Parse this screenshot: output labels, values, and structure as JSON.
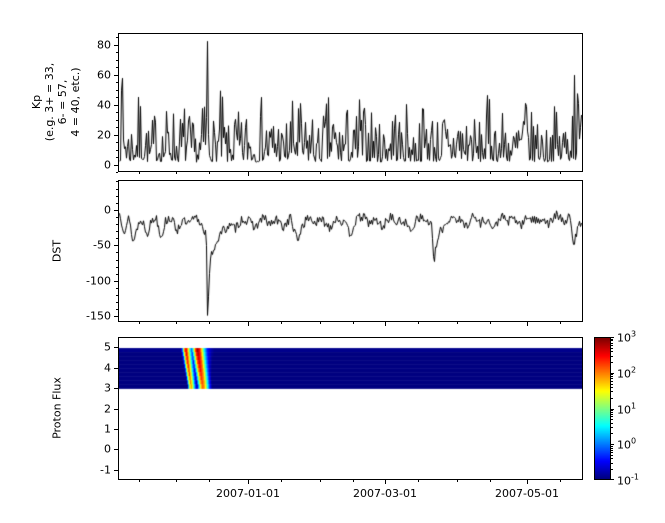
{
  "figure": {
    "background": "#ffffff"
  },
  "x_axis": {
    "tick_labels": [
      "2007-01-01",
      "2007-03-01",
      "2007-05-01"
    ],
    "tick_days": [
      56,
      115,
      176
    ],
    "minor_tick_days": [
      9,
      25,
      39,
      70,
      87,
      101,
      129,
      146,
      160,
      190
    ],
    "domain_days": 200
  },
  "chart_data": [
    {
      "type": "line",
      "name": "kp",
      "ylabel": "Kp\n(e.g. 3+ = 33,\n6- = 57,\n4 = 40, etc.)",
      "yticks": [
        0,
        20,
        40,
        60,
        80
      ],
      "ylim": [
        -5,
        88
      ],
      "minor_ytick_step": 5,
      "line_color": "#000000",
      "series": {
        "envelope_keypoints": [
          [
            0,
            45
          ],
          [
            2,
            62
          ],
          [
            4,
            30
          ],
          [
            7,
            42
          ],
          [
            10,
            55
          ],
          [
            13,
            22
          ],
          [
            16,
            45
          ],
          [
            19,
            30
          ],
          [
            22,
            52
          ],
          [
            25,
            28
          ],
          [
            28,
            45
          ],
          [
            31,
            32
          ],
          [
            34,
            22
          ],
          [
            36,
            40
          ],
          [
            38,
            85
          ],
          [
            39,
            48
          ],
          [
            41,
            30
          ],
          [
            44,
            52
          ],
          [
            47,
            25
          ],
          [
            50,
            42
          ],
          [
            53,
            30
          ],
          [
            56,
            48
          ],
          [
            59,
            22
          ],
          [
            62,
            52
          ],
          [
            65,
            35
          ],
          [
            68,
            45
          ],
          [
            71,
            25
          ],
          [
            74,
            42
          ],
          [
            77,
            52
          ],
          [
            80,
            30
          ],
          [
            83,
            45
          ],
          [
            86,
            25
          ],
          [
            89,
            42
          ],
          [
            92,
            52
          ],
          [
            95,
            30
          ],
          [
            98,
            45
          ],
          [
            101,
            25
          ],
          [
            104,
            52
          ],
          [
            107,
            35
          ],
          [
            110,
            45
          ],
          [
            113,
            25
          ],
          [
            116,
            42
          ],
          [
            119,
            52
          ],
          [
            122,
            30
          ],
          [
            125,
            45
          ],
          [
            128,
            25
          ],
          [
            131,
            42
          ],
          [
            134,
            52
          ],
          [
            137,
            30
          ],
          [
            140,
            45
          ],
          [
            143,
            25
          ],
          [
            146,
            55
          ],
          [
            149,
            35
          ],
          [
            152,
            45
          ],
          [
            155,
            25
          ],
          [
            158,
            42
          ],
          [
            161,
            52
          ],
          [
            164,
            30
          ],
          [
            167,
            45
          ],
          [
            170,
            25
          ],
          [
            173,
            42
          ],
          [
            176,
            55
          ],
          [
            179,
            30
          ],
          [
            182,
            45
          ],
          [
            185,
            25
          ],
          [
            188,
            42
          ],
          [
            191,
            30
          ],
          [
            194,
            45
          ],
          [
            197,
            62
          ],
          [
            200,
            45
          ]
        ],
        "base_frac": 0.04,
        "shape_power": 2.2,
        "seed": 7,
        "forced_points": [
          [
            1.5,
            58
          ],
          [
            38,
            83
          ],
          [
            197,
            60
          ]
        ]
      }
    },
    {
      "type": "line",
      "name": "dst",
      "ylabel": "DST",
      "yticks": [
        0,
        -50,
        -100,
        -150
      ],
      "ylim": [
        -158,
        42
      ],
      "minor_ytick_step": 10,
      "line_color": "#000000",
      "series": {
        "keypoints": [
          [
            0,
            -5
          ],
          [
            2,
            -28
          ],
          [
            4,
            -12
          ],
          [
            6,
            -45
          ],
          [
            8,
            -20
          ],
          [
            10,
            -15
          ],
          [
            12,
            -32
          ],
          [
            14,
            -15
          ],
          [
            16,
            -10
          ],
          [
            18,
            -38
          ],
          [
            20,
            -15
          ],
          [
            22,
            -10
          ],
          [
            25,
            -28
          ],
          [
            27,
            -15
          ],
          [
            30,
            -20
          ],
          [
            33,
            -10
          ],
          [
            36,
            -22
          ],
          [
            37.6,
            -35
          ],
          [
            38.3,
            -148
          ],
          [
            39,
            -85
          ],
          [
            40,
            -60
          ],
          [
            42,
            -45
          ],
          [
            44,
            -32
          ],
          [
            47,
            -22
          ],
          [
            50,
            -26
          ],
          [
            53,
            -12
          ],
          [
            56,
            -16
          ],
          [
            59,
            -24
          ],
          [
            62,
            -10
          ],
          [
            65,
            -20
          ],
          [
            68,
            -14
          ],
          [
            71,
            -24
          ],
          [
            74,
            -10
          ],
          [
            77,
            -45
          ],
          [
            79,
            -22
          ],
          [
            82,
            -10
          ],
          [
            85,
            -18
          ],
          [
            88,
            -14
          ],
          [
            91,
            -24
          ],
          [
            94,
            -10
          ],
          [
            97,
            -18
          ],
          [
            100,
            -34
          ],
          [
            102,
            -16
          ],
          [
            105,
            -8
          ],
          [
            108,
            -18
          ],
          [
            111,
            -14
          ],
          [
            114,
            -24
          ],
          [
            117,
            -8
          ],
          [
            120,
            -18
          ],
          [
            123,
            -14
          ],
          [
            126,
            -30
          ],
          [
            129,
            -8
          ],
          [
            132,
            -14
          ],
          [
            135,
            -18
          ],
          [
            136,
            -75
          ],
          [
            137.5,
            -45
          ],
          [
            139,
            -30
          ],
          [
            141,
            -20
          ],
          [
            144,
            -8
          ],
          [
            147,
            -14
          ],
          [
            150,
            -22
          ],
          [
            153,
            -8
          ],
          [
            156,
            -18
          ],
          [
            159,
            -12
          ],
          [
            162,
            -28
          ],
          [
            165,
            -8
          ],
          [
            168,
            -16
          ],
          [
            171,
            -12
          ],
          [
            174,
            -22
          ],
          [
            177,
            -8
          ],
          [
            180,
            -16
          ],
          [
            183,
            -10
          ],
          [
            186,
            -20
          ],
          [
            189,
            -6
          ],
          [
            192,
            -16
          ],
          [
            195,
            -10
          ],
          [
            196.5,
            -52
          ],
          [
            198,
            -28
          ],
          [
            200,
            -15
          ]
        ],
        "noise_amp": 7,
        "seed": 13,
        "forced_points": [
          [
            38.3,
            -150
          ]
        ]
      }
    },
    {
      "type": "heatmap",
      "name": "proton_flux",
      "ylabel": "Proton Flux",
      "yticks": [
        5,
        4,
        3,
        2,
        1,
        0,
        -1
      ],
      "ylim": [
        -1.5,
        5.5
      ],
      "band_y_range": [
        3,
        5
      ],
      "rows": 10,
      "row_delay_days": 0.25,
      "row_log_attenuation": 0.08,
      "log10_keypoints": [
        [
          0,
          -0.95
        ],
        [
          26.5,
          -0.95
        ],
        [
          27.2,
          -0.2
        ],
        [
          28,
          1.8
        ],
        [
          28.8,
          2.7
        ],
        [
          29.6,
          1.8
        ],
        [
          30.5,
          0.6
        ],
        [
          31.3,
          -0.2
        ],
        [
          32.2,
          1.2
        ],
        [
          33,
          2.4
        ],
        [
          33.8,
          2.9
        ],
        [
          34.8,
          2.4
        ],
        [
          35.8,
          1.4
        ],
        [
          36.8,
          0.4
        ],
        [
          38,
          -0.4
        ],
        [
          39.5,
          -0.8
        ],
        [
          41,
          -0.95
        ],
        [
          200,
          -0.95
        ]
      ],
      "colormap": "jet",
      "color_scale": {
        "type": "log",
        "min": 0.1,
        "max": 1000
      },
      "colorbar": {
        "base": 10,
        "tick_exponents": [
          3,
          2,
          1,
          0,
          -1
        ]
      }
    }
  ]
}
